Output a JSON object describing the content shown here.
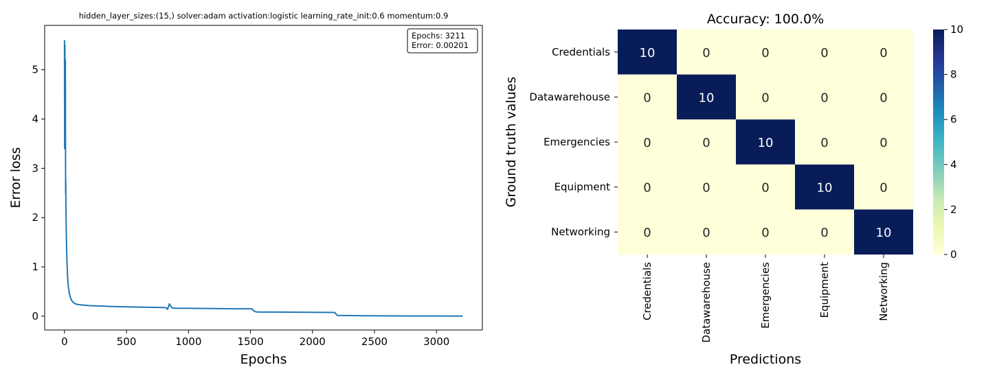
{
  "chart_data": [
    {
      "type": "line",
      "title": "hidden_layer_sizes:(15,) solver:adam activation:logistic learning_rate_init:0.6 momentum:0.9",
      "xlabel": "Epochs",
      "ylabel": "Error loss",
      "xlim": [
        -160,
        3370
      ],
      "ylim": [
        -0.28,
        5.9
      ],
      "xticks": [
        0,
        500,
        1000,
        1500,
        2000,
        2500,
        3000
      ],
      "yticks": [
        0,
        1,
        2,
        3,
        4,
        5
      ],
      "grid": false,
      "color": "#1f77b4",
      "legend_box": {
        "position": "top-right",
        "lines": [
          "Epochs: 3211",
          "Error: 0.00201"
        ]
      },
      "series": [
        {
          "points": [
            [
              0,
              5.6
            ],
            [
              1,
              3.4
            ],
            [
              3,
              5.5
            ],
            [
              5,
              3.5
            ],
            [
              7,
              5.2
            ],
            [
              9,
              2.5
            ],
            [
              10,
              2.75
            ],
            [
              12,
              2.1
            ],
            [
              15,
              1.6
            ],
            [
              20,
              1.1
            ],
            [
              25,
              0.8
            ],
            [
              30,
              0.62
            ],
            [
              40,
              0.45
            ],
            [
              50,
              0.36
            ],
            [
              60,
              0.31
            ],
            [
              80,
              0.26
            ],
            [
              100,
              0.24
            ],
            [
              150,
              0.225
            ],
            [
              200,
              0.215
            ],
            [
              300,
              0.205
            ],
            [
              400,
              0.195
            ],
            [
              500,
              0.19
            ],
            [
              600,
              0.185
            ],
            [
              700,
              0.18
            ],
            [
              800,
              0.175
            ],
            [
              820,
              0.17
            ],
            [
              830,
              0.14
            ],
            [
              840,
              0.2
            ],
            [
              845,
              0.25
            ],
            [
              855,
              0.21
            ],
            [
              870,
              0.165
            ],
            [
              900,
              0.16
            ],
            [
              1000,
              0.16
            ],
            [
              1200,
              0.155
            ],
            [
              1400,
              0.15
            ],
            [
              1510,
              0.15
            ],
            [
              1530,
              0.1
            ],
            [
              1550,
              0.085
            ],
            [
              1700,
              0.083
            ],
            [
              2000,
              0.078
            ],
            [
              2180,
              0.075
            ],
            [
              2200,
              0.015
            ],
            [
              2400,
              0.008
            ],
            [
              2800,
              0.004
            ],
            [
              3000,
              0.003
            ],
            [
              3211,
              0.002
            ]
          ]
        }
      ]
    },
    {
      "type": "heatmap",
      "title": "Accuracy: 100.0%",
      "xlabel": "Predictions",
      "ylabel": "Ground truth values",
      "categories": [
        "Credentials",
        "Datawarehouse",
        "Emergencies",
        "Equipment",
        "Networking"
      ],
      "values": [
        [
          10,
          0,
          0,
          0,
          0
        ],
        [
          0,
          10,
          0,
          0,
          0
        ],
        [
          0,
          0,
          10,
          0,
          0
        ],
        [
          0,
          0,
          0,
          10,
          0
        ],
        [
          0,
          0,
          0,
          0,
          10
        ]
      ],
      "colorbar": {
        "min": 0,
        "max": 10,
        "ticks": [
          0,
          2,
          4,
          6,
          8,
          10
        ],
        "colormap": "YlGnBu",
        "low_color": "#ffffd9",
        "high_color": "#081d58"
      }
    }
  ]
}
